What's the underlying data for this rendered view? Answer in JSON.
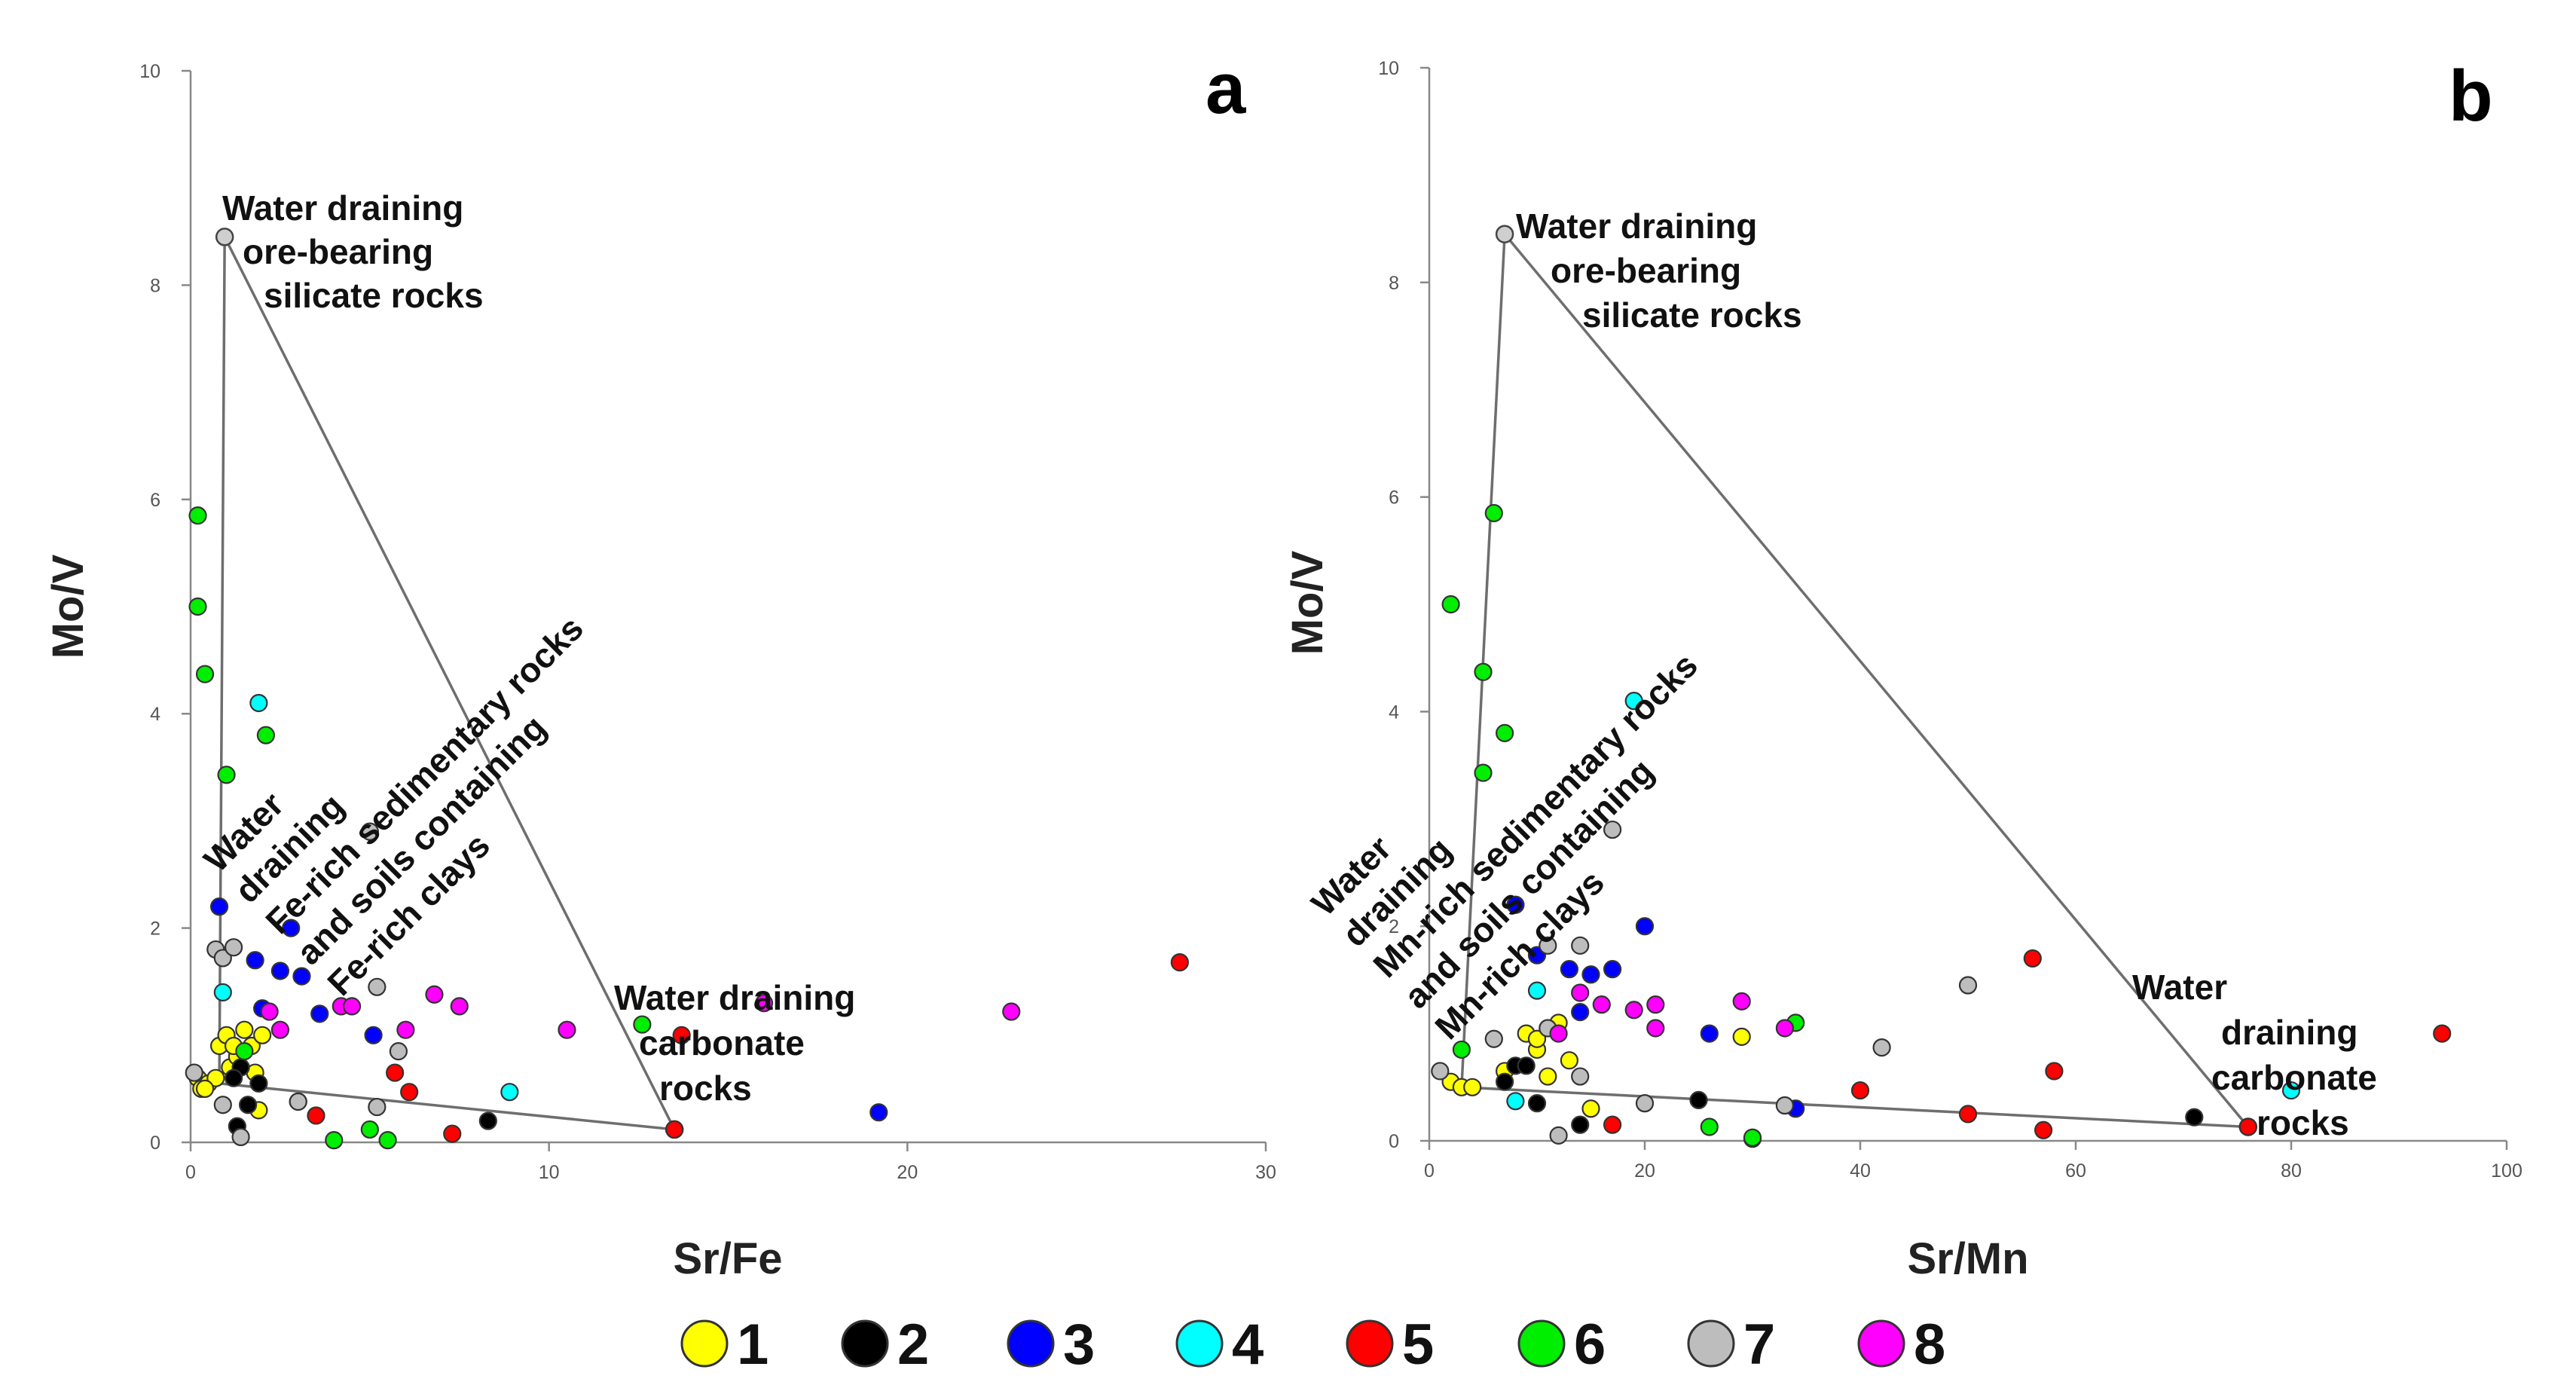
{
  "legend": [
    {
      "label": "1",
      "color": "#FFFF00"
    },
    {
      "label": "2",
      "color": "#000000"
    },
    {
      "label": "3",
      "color": "#0000FF"
    },
    {
      "label": "4",
      "color": "#00FFFF"
    },
    {
      "label": "5",
      "color": "#FF0000"
    },
    {
      "label": "6",
      "color": "#00EE00"
    },
    {
      "label": "7",
      "color": "#BDBDBD"
    },
    {
      "label": "8",
      "color": "#FF00FF"
    }
  ],
  "chart_data": [
    {
      "type": "scatter",
      "panel": "a",
      "xlabel": "Sr/Fe",
      "ylabel": "Mo/V",
      "xlim": [
        0,
        30
      ],
      "ylim": [
        0,
        10
      ],
      "xticks": [
        "0",
        "10",
        "20",
        "30"
      ],
      "yticks": [
        "0",
        "2",
        "4",
        "6",
        "8",
        "10"
      ],
      "triangle": [
        [
          0.95,
          8.45
        ],
        [
          0.8,
          0.55
        ],
        [
          13.5,
          0.12
        ]
      ],
      "annotations": [
        {
          "lines": [
            "Water draining",
            "ore-bearing",
            "silicate rocks"
          ]
        },
        {
          "lines": [
            "Water draining",
            "carbonate",
            "rocks"
          ]
        },
        {
          "lines": [
            "Water",
            "draining",
            "Fe-rich sedimentary rocks",
            "and soils containing",
            "Fe-rich clays"
          ]
        }
      ],
      "series": [
        {
          "group": "1",
          "points": [
            [
              0.2,
              0.6
            ],
            [
              0.3,
              0.5
            ],
            [
              0.5,
              0.55
            ],
            [
              0.7,
              0.6
            ],
            [
              0.8,
              0.9
            ],
            [
              1.0,
              1.0
            ],
            [
              1.1,
              0.7
            ],
            [
              1.3,
              0.8
            ],
            [
              1.5,
              1.05
            ],
            [
              1.7,
              0.9
            ],
            [
              1.8,
              0.65
            ],
            [
              1.9,
              0.3
            ],
            [
              2.0,
              1.0
            ],
            [
              0.4,
              0.5
            ],
            [
              1.2,
              0.9
            ]
          ]
        },
        {
          "group": "2",
          "points": [
            [
              1.3,
              0.15
            ],
            [
              1.4,
              0.7
            ],
            [
              1.6,
              0.35
            ],
            [
              1.9,
              0.55
            ],
            [
              3.0,
              0.38
            ],
            [
              8.3,
              0.2
            ],
            [
              1.2,
              0.6
            ]
          ]
        },
        {
          "group": "3",
          "points": [
            [
              0.8,
              2.2
            ],
            [
              1.8,
              1.7
            ],
            [
              2.0,
              1.25
            ],
            [
              2.5,
              1.6
            ],
            [
              2.8,
              2.0
            ],
            [
              3.1,
              1.55
            ],
            [
              3.6,
              1.2
            ],
            [
              5.1,
              1.0
            ],
            [
              19.2,
              0.28
            ]
          ]
        },
        {
          "group": "4",
          "points": [
            [
              0.9,
              1.4
            ],
            [
              1.9,
              4.1
            ],
            [
              8.9,
              0.47
            ]
          ]
        },
        {
          "group": "5",
          "points": [
            [
              3.5,
              0.25
            ],
            [
              5.7,
              0.65
            ],
            [
              6.1,
              0.47
            ],
            [
              7.3,
              0.08
            ],
            [
              13.5,
              0.12
            ],
            [
              13.7,
              1.0
            ],
            [
              27.6,
              1.68
            ]
          ]
        },
        {
          "group": "6",
          "points": [
            [
              0.2,
              5.85
            ],
            [
              0.2,
              5.0
            ],
            [
              0.4,
              4.37
            ],
            [
              1.0,
              3.43
            ],
            [
              2.1,
              3.8
            ],
            [
              1.5,
              0.85
            ],
            [
              4.0,
              0.02
            ],
            [
              5.0,
              0.12
            ],
            [
              5.5,
              0.02
            ],
            [
              12.6,
              1.1
            ]
          ]
        },
        {
          "group": "7",
          "points": [
            [
              0.1,
              0.65
            ],
            [
              0.7,
              1.8
            ],
            [
              0.9,
              1.72
            ],
            [
              1.2,
              1.82
            ],
            [
              0.9,
              0.35
            ],
            [
              1.4,
              0.05
            ],
            [
              5.0,
              2.9
            ],
            [
              5.2,
              1.45
            ],
            [
              5.8,
              0.85
            ],
            [
              5.2,
              0.33
            ],
            [
              3.0,
              0.38
            ]
          ]
        },
        {
          "group": "8",
          "points": [
            [
              2.2,
              1.22
            ],
            [
              2.5,
              1.05
            ],
            [
              4.2,
              1.27
            ],
            [
              4.5,
              1.27
            ],
            [
              6.0,
              1.05
            ],
            [
              6.8,
              1.38
            ],
            [
              7.5,
              1.27
            ],
            [
              10.5,
              1.05
            ],
            [
              16.0,
              1.3
            ],
            [
              22.9,
              1.22
            ]
          ]
        }
      ]
    },
    {
      "type": "scatter",
      "panel": "b",
      "xlabel": "Sr/Mn",
      "ylabel": "Mo/V",
      "xlim": [
        0,
        100
      ],
      "ylim": [
        0,
        10
      ],
      "xticks": [
        "0",
        "20",
        "40",
        "60",
        "80",
        "100"
      ],
      "yticks": [
        "0",
        "2",
        "4",
        "6",
        "8",
        "10"
      ],
      "triangle": [
        [
          7,
          8.45
        ],
        [
          3,
          0.5
        ],
        [
          76,
          0.13
        ]
      ],
      "annotations": [
        {
          "lines": [
            "Water draining",
            "ore-bearing",
            "silicate rocks"
          ]
        },
        {
          "lines": [
            "Water",
            "draining",
            "carbonate",
            "rocks"
          ]
        },
        {
          "lines": [
            "Water",
            "draining",
            "Mn-rich sedimentary rocks",
            "and soils containing",
            "Mn-rich clays"
          ]
        }
      ],
      "series": [
        {
          "group": "1",
          "points": [
            [
              2,
              0.55
            ],
            [
              3,
              0.5
            ],
            [
              4,
              0.5
            ],
            [
              7,
              0.65
            ],
            [
              9,
              1.0
            ],
            [
              10,
              0.85
            ],
            [
              11,
              0.6
            ],
            [
              12,
              1.1
            ],
            [
              13,
              0.75
            ],
            [
              15,
              0.3
            ],
            [
              29,
              0.97
            ],
            [
              10,
              0.95
            ]
          ]
        },
        {
          "group": "2",
          "points": [
            [
              7,
              0.55
            ],
            [
              8,
              0.7
            ],
            [
              9,
              0.7
            ],
            [
              10,
              0.35
            ],
            [
              14,
              0.15
            ],
            [
              25,
              0.38
            ],
            [
              71,
              0.22
            ]
          ]
        },
        {
          "group": "3",
          "points": [
            [
              8,
              2.2
            ],
            [
              10,
              1.73
            ],
            [
              13,
              1.6
            ],
            [
              15,
              1.55
            ],
            [
              17,
              1.6
            ],
            [
              20,
              2.0
            ],
            [
              26,
              1.0
            ],
            [
              34,
              0.3
            ],
            [
              14,
              1.2
            ]
          ]
        },
        {
          "group": "4",
          "points": [
            [
              8,
              0.37
            ],
            [
              10,
              1.4
            ],
            [
              19,
              4.1
            ],
            [
              80,
              0.47
            ]
          ]
        },
        {
          "group": "5",
          "points": [
            [
              17,
              0.15
            ],
            [
              40,
              0.47
            ],
            [
              50,
              0.25
            ],
            [
              56,
              1.7
            ],
            [
              57,
              0.1
            ],
            [
              58,
              0.65
            ],
            [
              76,
              0.13
            ],
            [
              94,
              1.0
            ]
          ]
        },
        {
          "group": "6",
          "points": [
            [
              2,
              5.0
            ],
            [
              3,
              0.85
            ],
            [
              5,
              4.37
            ],
            [
              5,
              3.43
            ],
            [
              6,
              5.85
            ],
            [
              7,
              3.8
            ],
            [
              26,
              0.13
            ],
            [
              30,
              0.02
            ],
            [
              34,
              1.1
            ],
            [
              30,
              0.03
            ]
          ]
        },
        {
          "group": "7",
          "points": [
            [
              1,
              0.65
            ],
            [
              6,
              0.95
            ],
            [
              11,
              1.05
            ],
            [
              11,
              1.82
            ],
            [
              12,
              0.05
            ],
            [
              14,
              0.6
            ],
            [
              14,
              1.82
            ],
            [
              17,
              2.9
            ],
            [
              20,
              0.35
            ],
            [
              33,
              0.33
            ],
            [
              42,
              0.87
            ],
            [
              50,
              1.45
            ]
          ]
        },
        {
          "group": "8",
          "points": [
            [
              12,
              1.0
            ],
            [
              14,
              1.38
            ],
            [
              16,
              1.27
            ],
            [
              19,
              1.22
            ],
            [
              21,
              1.27
            ],
            [
              21,
              1.05
            ],
            [
              29,
              1.3
            ],
            [
              33,
              1.05
            ]
          ]
        }
      ]
    }
  ]
}
